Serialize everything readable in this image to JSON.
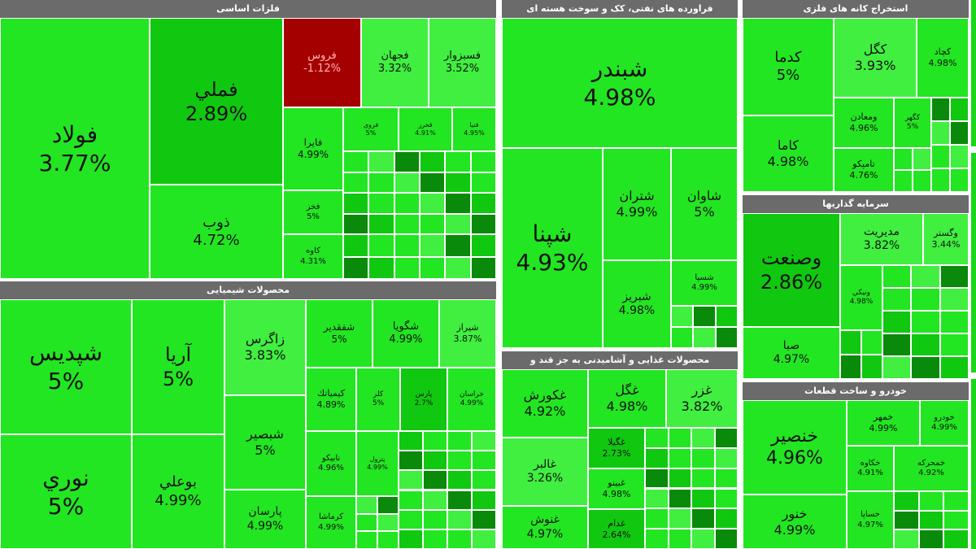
{
  "colors": {
    "bright_green": "#22e622",
    "light_green": "#40ef40",
    "mid_green": "#10c810",
    "dark_green": "#0a8a0a",
    "red": "#a50000",
    "header_gray": "#6b6b6b"
  },
  "chart_data": {
    "type": "treemap",
    "title": "",
    "sectors": [
      {
        "name": "فلزات اساسی",
        "tiles": [
          {
            "name": "فولاد",
            "value": "3.77%",
            "change": 3.77,
            "color": "bright"
          },
          {
            "name": "فملي",
            "value": "2.89%",
            "change": 2.89,
            "color": "mid"
          },
          {
            "name": "ذوب",
            "value": "4.72%",
            "change": 4.72,
            "color": "bright"
          },
          {
            "name": "فروس",
            "value": "-1.12%",
            "change": -1.12,
            "color": "red"
          },
          {
            "name": "فجهان",
            "value": "3.32%",
            "change": 3.32,
            "color": "light"
          },
          {
            "name": "فسبزوار",
            "value": "3.52%",
            "change": 3.52,
            "color": "light"
          },
          {
            "name": "فايرا",
            "value": "4.99%",
            "change": 4.99,
            "color": "bright"
          },
          {
            "name": "فروي",
            "value": "5%",
            "change": 5,
            "color": "bright"
          },
          {
            "name": "فحرز",
            "value": "4.91%",
            "change": 4.91,
            "color": "bright"
          },
          {
            "name": "فنيا",
            "value": "4.95%",
            "change": 4.95,
            "color": "bright"
          },
          {
            "name": "فخز",
            "value": "5%",
            "change": 5,
            "color": "bright"
          },
          {
            "name": "كاوه",
            "value": "4.31%",
            "change": 4.31,
            "color": "bright"
          }
        ]
      },
      {
        "name": "محصولات شیمیایی",
        "tiles": [
          {
            "name": "شپديس",
            "value": "5%",
            "change": 5,
            "color": "bright"
          },
          {
            "name": "نوري",
            "value": "5%",
            "change": 5,
            "color": "bright"
          },
          {
            "name": "آريا",
            "value": "5%",
            "change": 5,
            "color": "bright"
          },
          {
            "name": "بوعلي",
            "value": "4.99%",
            "change": 4.99,
            "color": "bright"
          },
          {
            "name": "زاگرس",
            "value": "3.83%",
            "change": 3.83,
            "color": "light"
          },
          {
            "name": "شبصير",
            "value": "5%",
            "change": 5,
            "color": "bright"
          },
          {
            "name": "پارسان",
            "value": "4.99%",
            "change": 4.99,
            "color": "bright"
          },
          {
            "name": "شفقدير",
            "value": "5%",
            "change": 5,
            "color": "bright"
          },
          {
            "name": "شگويا",
            "value": "4.99%",
            "change": 4.99,
            "color": "bright"
          },
          {
            "name": "شيراز",
            "value": "3.87%",
            "change": 3.87,
            "color": "light"
          },
          {
            "name": "كيمياتك",
            "value": "4.89%",
            "change": 4.89,
            "color": "bright"
          },
          {
            "name": "كلر",
            "value": "5%",
            "change": 5,
            "color": "bright"
          },
          {
            "name": "پارس",
            "value": "2.7%",
            "change": 2.7,
            "color": "mid"
          },
          {
            "name": "خراسان",
            "value": "4.99%",
            "change": 4.99,
            "color": "bright"
          },
          {
            "name": "نابيكو",
            "value": "4.96%",
            "change": 4.96,
            "color": "bright"
          },
          {
            "name": "كرماشا",
            "value": "4.99%",
            "change": 4.99,
            "color": "bright"
          },
          {
            "name": "پترول",
            "value": "4.99%",
            "change": 4.99,
            "color": "bright"
          }
        ]
      },
      {
        "name": "فراورده های نفتی، کک و سوخت هسته ای",
        "tiles": [
          {
            "name": "شبندر",
            "value": "4.98%",
            "change": 4.98,
            "color": "bright"
          },
          {
            "name": "شپنا",
            "value": "4.93%",
            "change": 4.93,
            "color": "bright"
          },
          {
            "name": "شتران",
            "value": "4.99%",
            "change": 4.99,
            "color": "bright"
          },
          {
            "name": "شاوان",
            "value": "5%",
            "change": 5,
            "color": "bright"
          },
          {
            "name": "شبريز",
            "value": "4.98%",
            "change": 4.98,
            "color": "bright"
          },
          {
            "name": "شسپا",
            "value": "4.99%",
            "change": 4.99,
            "color": "bright"
          }
        ]
      },
      {
        "name": "محصولات غذایی و آشامیدنی به جز قند و",
        "tiles": [
          {
            "name": "غكورش",
            "value": "4.92%",
            "change": 4.92,
            "color": "bright"
          },
          {
            "name": "غگل",
            "value": "4.98%",
            "change": 4.98,
            "color": "bright"
          },
          {
            "name": "غزر",
            "value": "3.82%",
            "change": 3.82,
            "color": "light"
          },
          {
            "name": "غالبر",
            "value": "3.26%",
            "change": 3.26,
            "color": "light"
          },
          {
            "name": "غنوش",
            "value": "4.97%",
            "change": 4.97,
            "color": "bright"
          },
          {
            "name": "غگيلا",
            "value": "2.73%",
            "change": 2.73,
            "color": "mid"
          },
          {
            "name": "غبينو",
            "value": "4.98%",
            "change": 4.98,
            "color": "bright"
          },
          {
            "name": "غدام",
            "value": "2.64%",
            "change": 2.64,
            "color": "mid"
          }
        ]
      },
      {
        "name": "استخراج کانه های فلزی",
        "tiles": [
          {
            "name": "كدما",
            "value": "5%",
            "change": 5,
            "color": "bright"
          },
          {
            "name": "كاما",
            "value": "4.98%",
            "change": 4.98,
            "color": "bright"
          },
          {
            "name": "كگل",
            "value": "3.93%",
            "change": 3.93,
            "color": "light"
          },
          {
            "name": "كچاد",
            "value": "4.98%",
            "change": 4.98,
            "color": "bright"
          },
          {
            "name": "ومعادن",
            "value": "4.96%",
            "change": 4.96,
            "color": "bright"
          },
          {
            "name": "كگهر",
            "value": "5%",
            "change": 5,
            "color": "bright"
          },
          {
            "name": "تامپكو",
            "value": "4.76%",
            "change": 4.76,
            "color": "bright"
          }
        ]
      },
      {
        "name": "سرمایه گذاریها",
        "tiles": [
          {
            "name": "وصنعت",
            "value": "2.86%",
            "change": 2.86,
            "color": "mid"
          },
          {
            "name": "مديريت",
            "value": "3.82%",
            "change": 3.82,
            "color": "light"
          },
          {
            "name": "وگستر",
            "value": "3.44%",
            "change": 3.44,
            "color": "light"
          },
          {
            "name": "ونيكي",
            "value": "4.98%",
            "change": 4.98,
            "color": "bright"
          },
          {
            "name": "صبا",
            "value": "4.97%",
            "change": 4.97,
            "color": "bright"
          }
        ]
      },
      {
        "name": "خودرو و ساخت قطعات",
        "tiles": [
          {
            "name": "خنصير",
            "value": "4.96%",
            "change": 4.96,
            "color": "bright"
          },
          {
            "name": "خنور",
            "value": "4.99%",
            "change": 4.99,
            "color": "bright"
          },
          {
            "name": "خمهر",
            "value": "4.99%",
            "change": 4.99,
            "color": "bright"
          },
          {
            "name": "خودرو",
            "value": "4.99%",
            "change": 4.99,
            "color": "bright"
          },
          {
            "name": "خكاوه",
            "value": "4.91%",
            "change": 4.91,
            "color": "bright"
          },
          {
            "name": "خمحركه",
            "value": "4.92%",
            "change": 4.92,
            "color": "bright"
          },
          {
            "name": "خساپا",
            "value": "4.97%",
            "change": 4.97,
            "color": "bright"
          }
        ]
      }
    ]
  }
}
